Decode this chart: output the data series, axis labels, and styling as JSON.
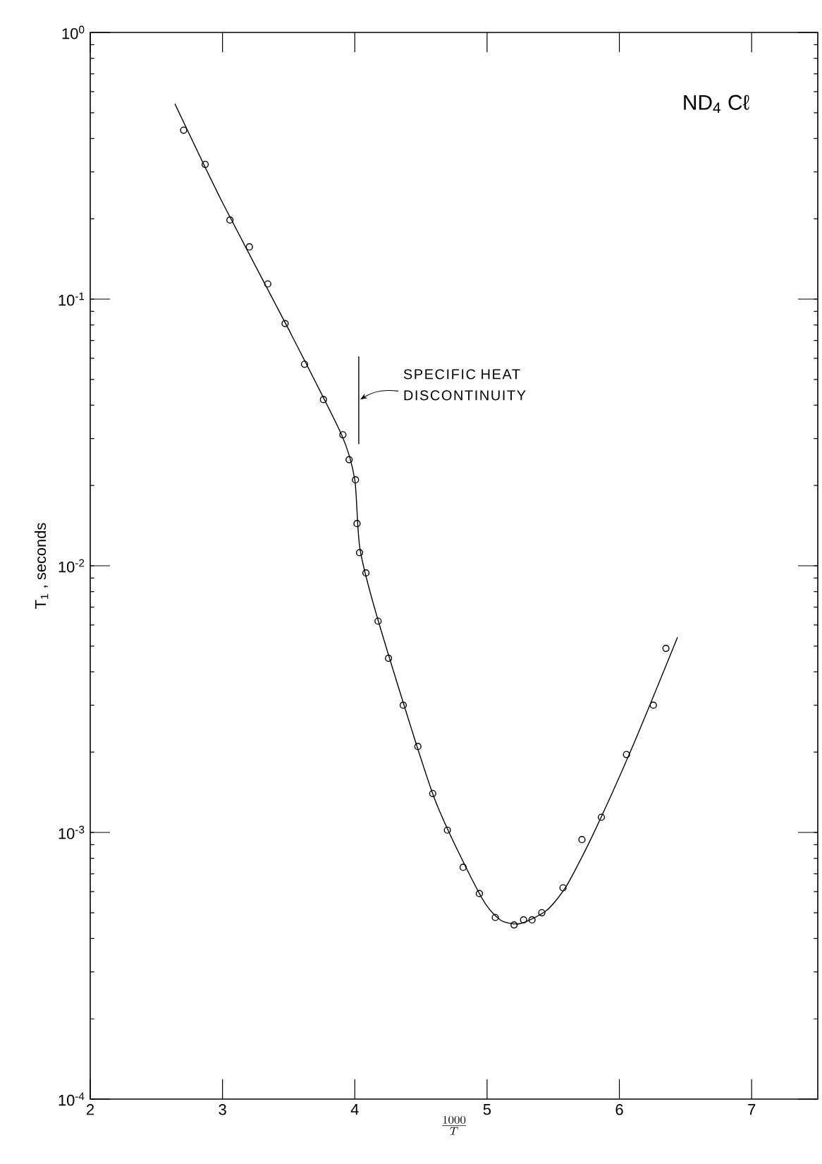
{
  "chart_data": {
    "type": "scatter",
    "title": "ND$_{4}$ Cℓ",
    "xlabel": "\\frac{1000}{T}",
    "ylabel": "T$_{1}$ , seconds",
    "ref_lines": [
      {
        "axis": "x",
        "value": 4.03,
        "label": "SPECIFIC HEAT DISCONTINUITY"
      }
    ],
    "log": "y",
    "grid": false,
    "xlim": [
      2,
      7.5
    ],
    "xticks": [
      2,
      3,
      4,
      5,
      6,
      7
    ],
    "ylim": [
      0.0001,
      1
    ],
    "yticks": [
      {
        "value": 0.0001,
        "label": "10$^{-4}$"
      },
      {
        "value": 0.001,
        "label": "10$^{-3}$"
      },
      {
        "value": 0.01,
        "label": "10$^{-2}$"
      },
      {
        "value": 0.1,
        "label": "10$^{-1}$"
      },
      {
        "value": 1,
        "label": "10$^{0}$"
      }
    ],
    "series": [
      {
        "marker": "circle",
        "color": "#000000",
        "x": [
          2.706,
          2.869,
          3.056,
          3.203,
          3.342,
          3.473,
          3.62,
          3.763,
          3.91,
          3.957,
          4.005,
          4.017,
          4.036,
          4.084,
          4.176,
          4.255,
          4.366,
          4.477,
          4.589,
          4.7,
          4.819,
          4.942,
          5.062,
          5.204,
          5.276,
          5.34,
          5.414,
          5.574,
          5.717,
          5.864,
          6.054,
          6.257,
          6.352
        ],
        "values": [
          0.43,
          0.32,
          0.198,
          0.157,
          0.114,
          0.081,
          0.057,
          0.042,
          0.031,
          0.025,
          0.021,
          0.0144,
          0.0112,
          0.0094,
          0.0062,
          0.0045,
          0.003,
          0.0021,
          0.0014,
          0.00102,
          0.00074,
          0.00059,
          0.00048,
          0.00045,
          0.00047,
          0.00047,
          0.0005,
          0.00062,
          0.00094,
          0.00114,
          0.00196,
          0.003,
          0.0049
        ]
      },
      {
        "type": "line",
        "marker": "none",
        "color": "#000000",
        "x": [
          2.64,
          3.0,
          3.5,
          3.9,
          4.0,
          4.04,
          4.2,
          4.6,
          4.95,
          5.1,
          5.25,
          5.45,
          5.6,
          5.8,
          6.1,
          6.44
        ],
        "values": [
          0.54,
          0.23,
          0.077,
          0.031,
          0.021,
          0.0115,
          0.0057,
          0.00135,
          0.00058,
          0.00047,
          0.000455,
          0.00051,
          0.00063,
          0.00098,
          0.0021,
          0.0054
        ]
      }
    ]
  }
}
